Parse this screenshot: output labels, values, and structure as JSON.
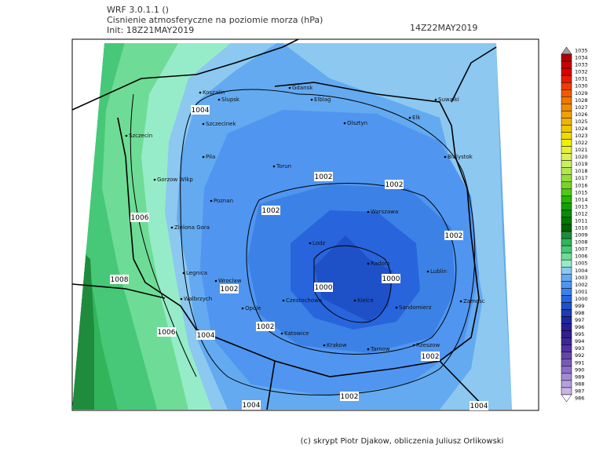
{
  "header": {
    "model": "WRF 3.0.1.1 ()",
    "title": "Cisnienie atmosferyczne na poziomie morza (hPa)",
    "init": "Init: 18Z21MAY2019",
    "valid": "14Z22MAY2019"
  },
  "colorbar": {
    "values": [
      1035,
      1034,
      1033,
      1032,
      1031,
      1030,
      1029,
      1028,
      1027,
      1026,
      1025,
      1024,
      1023,
      1022,
      1021,
      1020,
      1019,
      1018,
      1017,
      1016,
      1015,
      1014,
      1013,
      1012,
      1011,
      1010,
      1009,
      1008,
      1007,
      1006,
      1005,
      1004,
      1003,
      1002,
      1001,
      1000,
      999,
      998,
      997,
      996,
      995,
      994,
      993,
      992,
      991,
      990,
      989,
      988,
      987,
      986
    ],
    "colors": [
      "#a0a0a0",
      "#b40000",
      "#c80000",
      "#dc0000",
      "#e61e00",
      "#f03c00",
      "#f05a00",
      "#f07800",
      "#f08c00",
      "#f0a000",
      "#f0b400",
      "#f0c800",
      "#f0dc00",
      "#f0f000",
      "#e6f03c",
      "#dcf05a",
      "#c8f064",
      "#b4e650",
      "#96dc3c",
      "#78d228",
      "#50c814",
      "#28b400",
      "#14a000",
      "#0a8c00",
      "#007800",
      "#006400",
      "#1e8c3c",
      "#32b45a",
      "#46c878",
      "#6edc96",
      "#96ecc8",
      "#8cc8f0",
      "#64aaf0",
      "#5096f0",
      "#3c82e6",
      "#2864dc",
      "#1e50c8",
      "#1e3cb4",
      "#1e28a0",
      "#281e96",
      "#32208c",
      "#3c2896",
      "#5032a0",
      "#6446aa",
      "#785ab4",
      "#8c6ec8",
      "#a08cd2",
      "#b4a0dc",
      "#c8b4e6",
      "#ffffff"
    ]
  },
  "contour_labels": [
    1004,
    1002,
    1002,
    1002,
    1006,
    1002,
    1008,
    1000,
    1000,
    1002,
    1006,
    1004,
    1002,
    1002,
    1002,
    1004,
    1004
  ],
  "cities": [
    "Slupsk",
    "Koszalin",
    "Gdansk",
    "Elblag",
    "Suwalki",
    "Olsztyn",
    "Elk",
    "Szczecinek",
    "Szczecin",
    "Bialystok",
    "Pila",
    "Torun",
    "Gorzow Wlkp",
    "Poznan",
    "Warszawa",
    "Zielona Gora",
    "Lodz",
    "Radom",
    "Lublin",
    "Legnica",
    "Wroclaw",
    "Walbrzych",
    "Kielce",
    "Czestochowa",
    "Sandomierz",
    "Zamosc",
    "Opole",
    "Katowice",
    "Krakow",
    "Tarnow",
    "Rzeszow"
  ],
  "footer": {
    "credit": "(c) skrypt Piotr Djakow, obliczenia Juliusz Orlikowski"
  }
}
